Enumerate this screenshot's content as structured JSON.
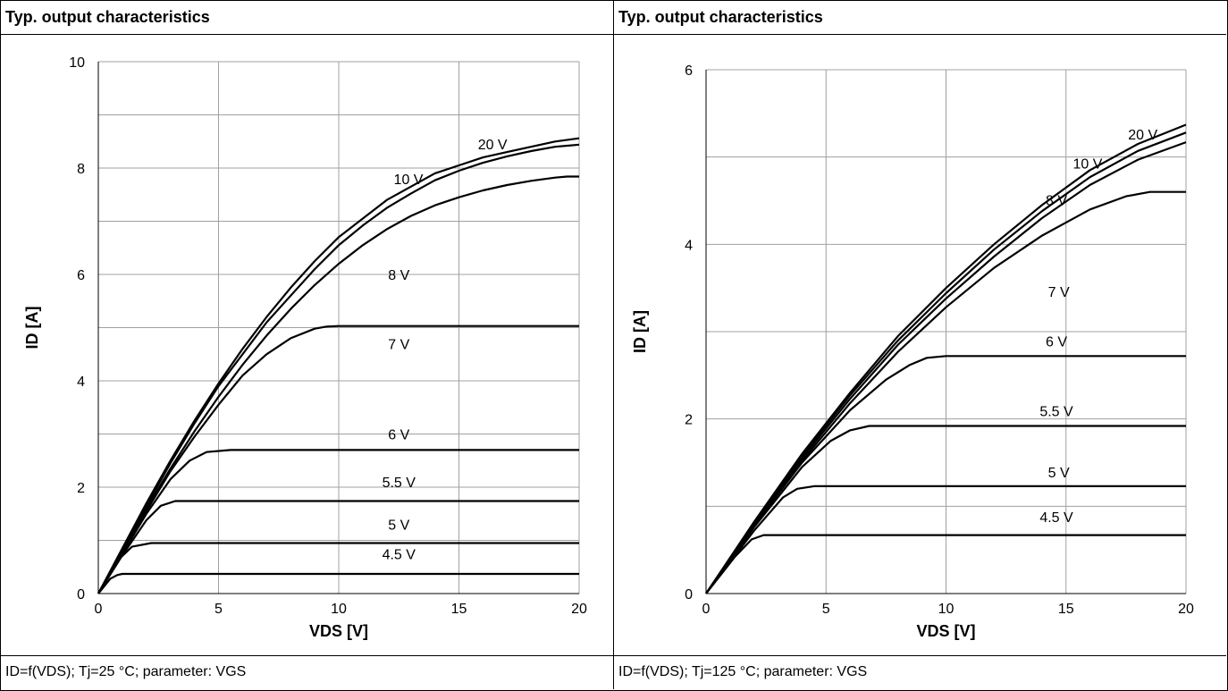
{
  "chart_data": [
    {
      "type": "line",
      "title": "Typ. output characteristics",
      "xlabel": "VDS [V]",
      "ylabel": "ID [A]",
      "xlim": [
        0,
        20
      ],
      "ylim": [
        0,
        10
      ],
      "xticks": [
        "0",
        "5",
        "10",
        "15",
        "20"
      ],
      "yticks": [
        "0",
        "2",
        "4",
        "6",
        "8",
        "10"
      ],
      "grid": true,
      "caption": "ID=f(VDS); Tj=25 °C; parameter: VGS",
      "series": [
        {
          "name": "20 V",
          "x": [
            0,
            1,
            2,
            3,
            4,
            5,
            6,
            7,
            8,
            9,
            10,
            11,
            12,
            13,
            14,
            15,
            16,
            17,
            18,
            19,
            20
          ],
          "y": [
            0,
            0.85,
            1.7,
            2.5,
            3.25,
            3.95,
            4.6,
            5.2,
            5.75,
            6.25,
            6.7,
            7.05,
            7.4,
            7.65,
            7.9,
            8.05,
            8.2,
            8.3,
            8.4,
            8.5,
            8.56
          ]
        },
        {
          "name": "10 V",
          "x": [
            0,
            1,
            2,
            3,
            4,
            5,
            6,
            7,
            8,
            9,
            10,
            11,
            12,
            13,
            14,
            15,
            16,
            17,
            18,
            19,
            20
          ],
          "y": [
            0,
            0.83,
            1.65,
            2.45,
            3.2,
            3.9,
            4.5,
            5.1,
            5.6,
            6.1,
            6.55,
            6.92,
            7.25,
            7.52,
            7.77,
            7.95,
            8.1,
            8.22,
            8.32,
            8.4,
            8.44
          ]
        },
        {
          "name": "8 V",
          "x": [
            0,
            1,
            2,
            3,
            4,
            5,
            6,
            7,
            8,
            9,
            10,
            11,
            12,
            13,
            14,
            15,
            16,
            17,
            18,
            19,
            19.5,
            20
          ],
          "y": [
            0,
            0.8,
            1.6,
            2.35,
            3.05,
            3.7,
            4.3,
            4.85,
            5.35,
            5.8,
            6.2,
            6.55,
            6.85,
            7.1,
            7.3,
            7.45,
            7.58,
            7.68,
            7.76,
            7.82,
            7.84,
            7.84
          ]
        },
        {
          "name": "7 V",
          "x": [
            0,
            1,
            2,
            3,
            4,
            5,
            6,
            7,
            8,
            9,
            9.5,
            10,
            20
          ],
          "y": [
            0,
            0.78,
            1.55,
            2.3,
            2.95,
            3.55,
            4.1,
            4.5,
            4.8,
            4.98,
            5.02,
            5.03,
            5.03
          ]
        },
        {
          "name": "6 V",
          "x": [
            0,
            1,
            2,
            3,
            3.8,
            4.5,
            5.5,
            20
          ],
          "y": [
            0,
            0.75,
            1.5,
            2.15,
            2.5,
            2.66,
            2.7,
            2.7
          ]
        },
        {
          "name": "5.5 V",
          "x": [
            0,
            1,
            2,
            2.6,
            3.2,
            20
          ],
          "y": [
            0,
            0.72,
            1.38,
            1.65,
            1.74,
            1.74
          ]
        },
        {
          "name": "5 V",
          "x": [
            0,
            0.8,
            1.4,
            2.2,
            20
          ],
          "y": [
            0,
            0.62,
            0.88,
            0.95,
            0.95
          ]
        },
        {
          "name": "4.5 V",
          "x": [
            0,
            0.5,
            0.8,
            1.0,
            20
          ],
          "y": [
            0,
            0.28,
            0.35,
            0.37,
            0.37
          ]
        }
      ],
      "labels": [
        {
          "text": "20 V",
          "x": 16.4,
          "y": 8.35
        },
        {
          "text": "10 V",
          "x": 12.9,
          "y": 7.7
        },
        {
          "text": "8 V",
          "x": 12.5,
          "y": 5.9
        },
        {
          "text": "7 V",
          "x": 12.5,
          "y": 4.6
        },
        {
          "text": "6 V",
          "x": 12.5,
          "y": 2.9
        },
        {
          "text": "5.5 V",
          "x": 12.5,
          "y": 2.0
        },
        {
          "text": "5 V",
          "x": 12.5,
          "y": 1.2
        },
        {
          "text": "4.5 V",
          "x": 12.5,
          "y": 0.65
        }
      ]
    },
    {
      "type": "line",
      "title": "Typ. output characteristics",
      "xlabel": "VDS [V]",
      "ylabel": "ID [A]",
      "xlim": [
        0,
        20
      ],
      "ylim": [
        0,
        6
      ],
      "xticks": [
        "0",
        "5",
        "10",
        "15",
        "20"
      ],
      "yticks": [
        "0",
        "2",
        "4",
        "6"
      ],
      "grid": true,
      "caption": "ID=f(VDS); Tj=125 °C; parameter: VGS",
      "series": [
        {
          "name": "20 V",
          "x": [
            0,
            2,
            4,
            6,
            8,
            10,
            12,
            14,
            16,
            18,
            20
          ],
          "y": [
            0,
            0.82,
            1.6,
            2.3,
            2.95,
            3.5,
            4.0,
            4.45,
            4.85,
            5.15,
            5.37
          ]
        },
        {
          "name": "10 V",
          "x": [
            0,
            2,
            4,
            6,
            8,
            10,
            12,
            14,
            16,
            18,
            20
          ],
          "y": [
            0,
            0.81,
            1.58,
            2.27,
            2.9,
            3.44,
            3.94,
            4.38,
            4.77,
            5.07,
            5.28
          ]
        },
        {
          "name": "8 V",
          "x": [
            0,
            2,
            4,
            6,
            8,
            10,
            12,
            14,
            16,
            18,
            20
          ],
          "y": [
            0,
            0.8,
            1.55,
            2.23,
            2.85,
            3.38,
            3.86,
            4.3,
            4.68,
            4.97,
            5.17
          ]
        },
        {
          "name": "7 V",
          "x": [
            0,
            2,
            4,
            6,
            8,
            10,
            12,
            14,
            16,
            17.5,
            18.5,
            20
          ],
          "y": [
            0,
            0.79,
            1.52,
            2.18,
            2.77,
            3.28,
            3.73,
            4.1,
            4.4,
            4.55,
            4.6,
            4.6
          ]
        },
        {
          "name": "6 V",
          "x": [
            0,
            2,
            4,
            6,
            7.5,
            8.5,
            9.2,
            10,
            20
          ],
          "y": [
            0,
            0.78,
            1.5,
            2.1,
            2.45,
            2.62,
            2.7,
            2.72,
            2.72
          ]
        },
        {
          "name": "5.5 V",
          "x": [
            0,
            2,
            4,
            5.2,
            6,
            6.8,
            20
          ],
          "y": [
            0,
            0.76,
            1.45,
            1.75,
            1.87,
            1.92,
            1.92
          ]
        },
        {
          "name": "5 V",
          "x": [
            0,
            2,
            3.2,
            3.8,
            4.5,
            20
          ],
          "y": [
            0,
            0.72,
            1.1,
            1.2,
            1.23,
            1.23
          ]
        },
        {
          "name": "4.5 V",
          "x": [
            0,
            1.2,
            1.9,
            2.4,
            20
          ],
          "y": [
            0,
            0.42,
            0.62,
            0.67,
            0.67
          ]
        }
      ],
      "labels": [
        {
          "text": "20 V",
          "x": 18.2,
          "y": 5.2
        },
        {
          "text": "10 V",
          "x": 15.9,
          "y": 4.87
        },
        {
          "text": "8 V",
          "x": 14.6,
          "y": 4.45
        },
        {
          "text": "7 V",
          "x": 14.7,
          "y": 3.4
        },
        {
          "text": "6 V",
          "x": 14.6,
          "y": 2.83
        },
        {
          "text": "5.5 V",
          "x": 14.6,
          "y": 2.03
        },
        {
          "text": "5 V",
          "x": 14.7,
          "y": 1.33
        },
        {
          "text": "4.5 V",
          "x": 14.6,
          "y": 0.82
        }
      ]
    }
  ]
}
